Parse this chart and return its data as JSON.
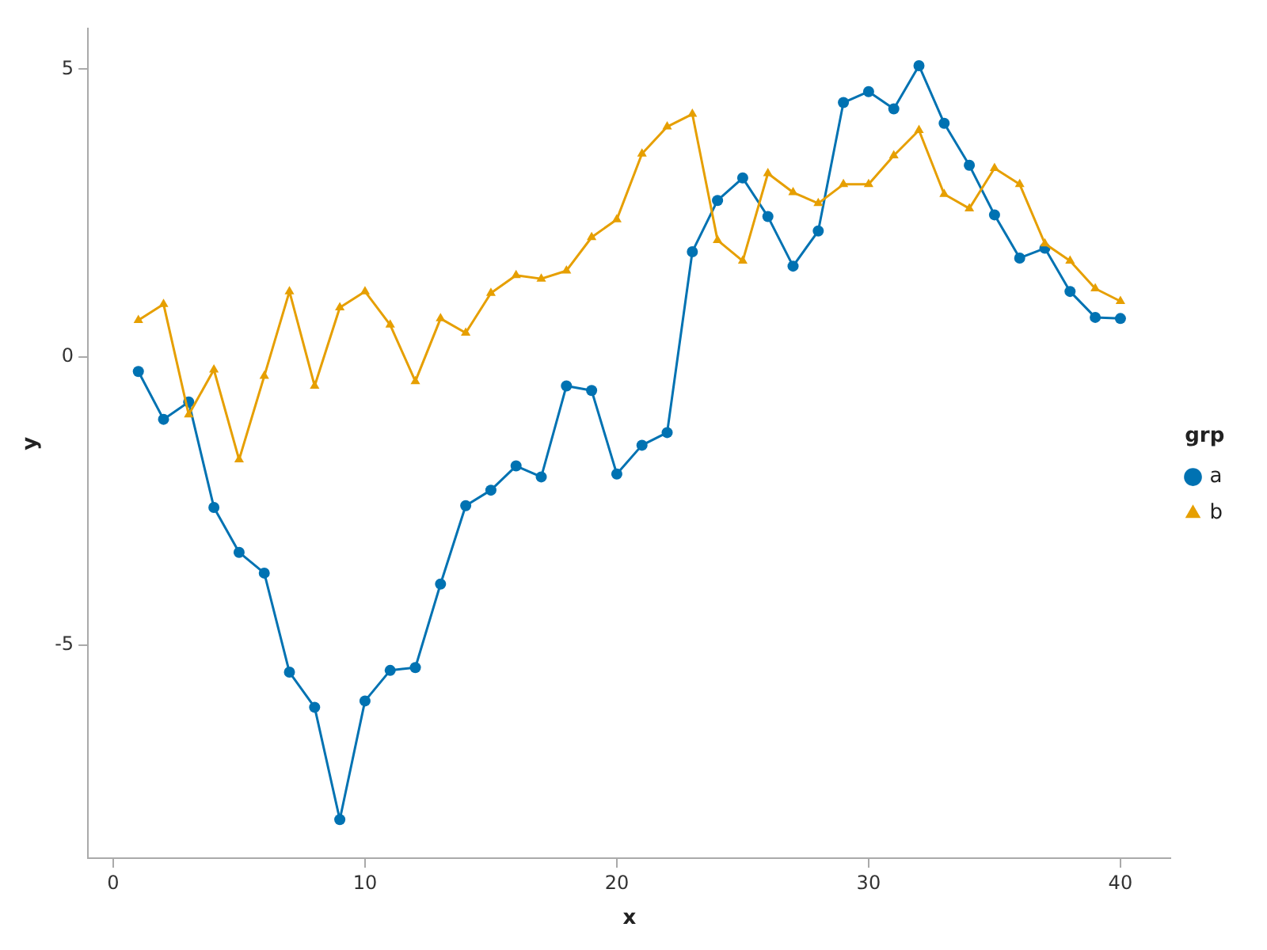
{
  "chart_data": {
    "type": "line",
    "xlabel": "x",
    "ylabel": "y",
    "legend_title": "grp",
    "legend": "right",
    "grid": false,
    "x": [
      1,
      2,
      3,
      4,
      5,
      6,
      7,
      8,
      9,
      10,
      11,
      12,
      13,
      14,
      15,
      16,
      17,
      18,
      19,
      20,
      21,
      22,
      23,
      24,
      25,
      26,
      27,
      28,
      29,
      30,
      31,
      32,
      33,
      34,
      35,
      36,
      37,
      38,
      39,
      40
    ],
    "xlim": [
      -1,
      42
    ],
    "xticks": [
      0,
      10,
      20,
      30,
      40
    ],
    "ylim": [
      -8.7,
      5.7
    ],
    "yticks": [
      -5,
      0,
      5
    ],
    "series": [
      {
        "name": "a",
        "color": "#0072b2",
        "marker": "circle",
        "values": [
          -0.25,
          -1.08,
          -0.78,
          -2.61,
          -3.39,
          -3.75,
          -5.47,
          -6.08,
          -8.03,
          -5.97,
          -5.44,
          -5.39,
          -3.94,
          -2.58,
          -2.31,
          -1.89,
          -2.08,
          -0.5,
          -0.58,
          -2.03,
          -1.53,
          -1.31,
          1.83,
          2.72,
          3.11,
          2.44,
          1.58,
          2.19,
          4.42,
          4.61,
          4.31,
          5.06,
          4.06,
          3.33,
          2.47,
          1.72,
          1.89,
          1.14,
          0.69,
          0.67
        ]
      },
      {
        "name": "b",
        "color": "#e69f00",
        "marker": "triangle",
        "values": [
          0.64,
          0.92,
          -1.0,
          -0.22,
          -1.78,
          -0.33,
          1.14,
          -0.5,
          0.86,
          1.14,
          0.56,
          -0.42,
          0.67,
          0.42,
          1.11,
          1.42,
          1.36,
          1.5,
          2.08,
          2.39,
          3.53,
          4.0,
          4.22,
          2.03,
          1.67,
          3.19,
          2.86,
          2.67,
          3.0,
          3.0,
          3.5,
          3.94,
          2.83,
          2.58,
          3.28,
          3.0,
          1.97,
          1.67,
          1.19,
          0.97
        ]
      }
    ]
  }
}
